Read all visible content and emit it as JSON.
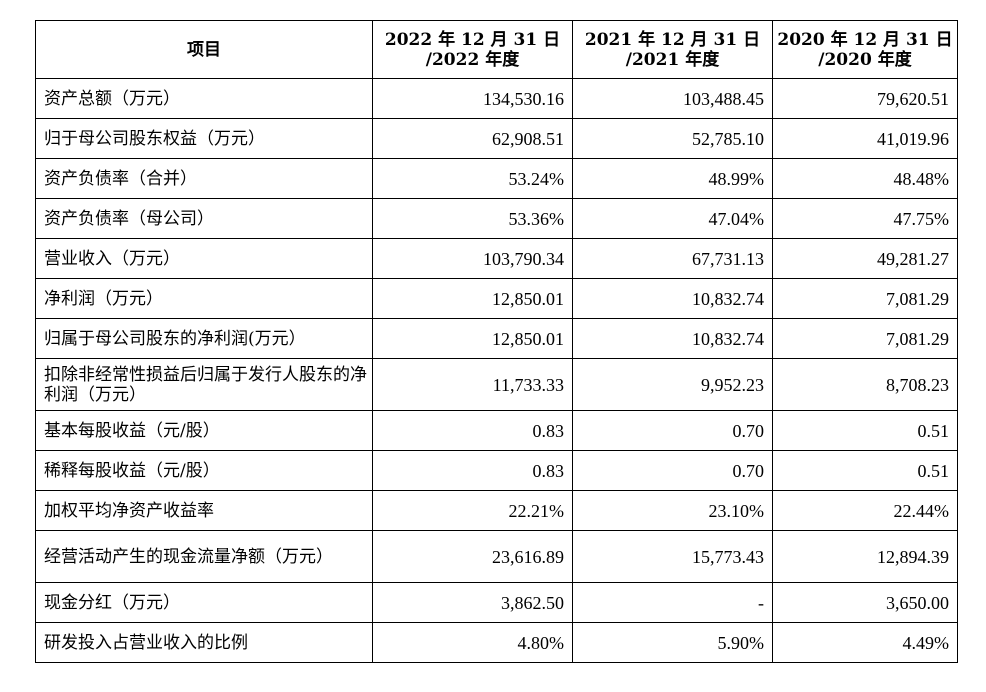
{
  "table": {
    "headers": [
      {
        "line1": "项目",
        "line2": ""
      },
      {
        "line1": "2022 年 12 月 31 日",
        "line2": "/2022 年度"
      },
      {
        "line1": "2021 年 12 月 31 日",
        "line2": "/2021 年度"
      },
      {
        "line1": "2020 年 12 月 31 日",
        "line2": "/2020 年度"
      }
    ],
    "rows": [
      {
        "label": "资产总额（万元）",
        "v2022": "134,530.16",
        "v2021": "103,488.45",
        "v2020": "79,620.51"
      },
      {
        "label": "归于母公司股东权益（万元）",
        "v2022": "62,908.51",
        "v2021": "52,785.10",
        "v2020": "41,019.96"
      },
      {
        "label": "资产负债率（合并）",
        "v2022": "53.24%",
        "v2021": "48.99%",
        "v2020": "48.48%"
      },
      {
        "label": "资产负债率（母公司）",
        "v2022": "53.36%",
        "v2021": "47.04%",
        "v2020": "47.75%"
      },
      {
        "label": "营业收入（万元）",
        "v2022": "103,790.34",
        "v2021": "67,731.13",
        "v2020": "49,281.27"
      },
      {
        "label": "净利润（万元）",
        "v2022": "12,850.01",
        "v2021": "10,832.74",
        "v2020": "7,081.29"
      },
      {
        "label": "归属于母公司股东的净利润(万元）",
        "v2022": "12,850.01",
        "v2021": "10,832.74",
        "v2020": "7,081.29"
      },
      {
        "label": "扣除非经常性损益后归属于发行人股东的净利润（万元）",
        "v2022": "11,733.33",
        "v2021": "9,952.23",
        "v2020": "8,708.23"
      },
      {
        "label": "基本每股收益（元/股）",
        "v2022": "0.83",
        "v2021": "0.70",
        "v2020": "0.51"
      },
      {
        "label": "稀释每股收益（元/股）",
        "v2022": "0.83",
        "v2021": "0.70",
        "v2020": "0.51"
      },
      {
        "label": "加权平均净资产收益率",
        "v2022": "22.21%",
        "v2021": "23.10%",
        "v2020": "22.44%"
      },
      {
        "label": "经营活动产生的现金流量净额（万元）",
        "v2022": "23,616.89",
        "v2021": "15,773.43",
        "v2020": "12,894.39"
      },
      {
        "label": "现金分红（万元）",
        "v2022": "3,862.50",
        "v2021": "-",
        "v2020": "3,650.00"
      },
      {
        "label": "研发投入占营业收入的比例",
        "v2022": "4.80%",
        "v2021": "5.90%",
        "v2020": "4.49%"
      }
    ]
  }
}
